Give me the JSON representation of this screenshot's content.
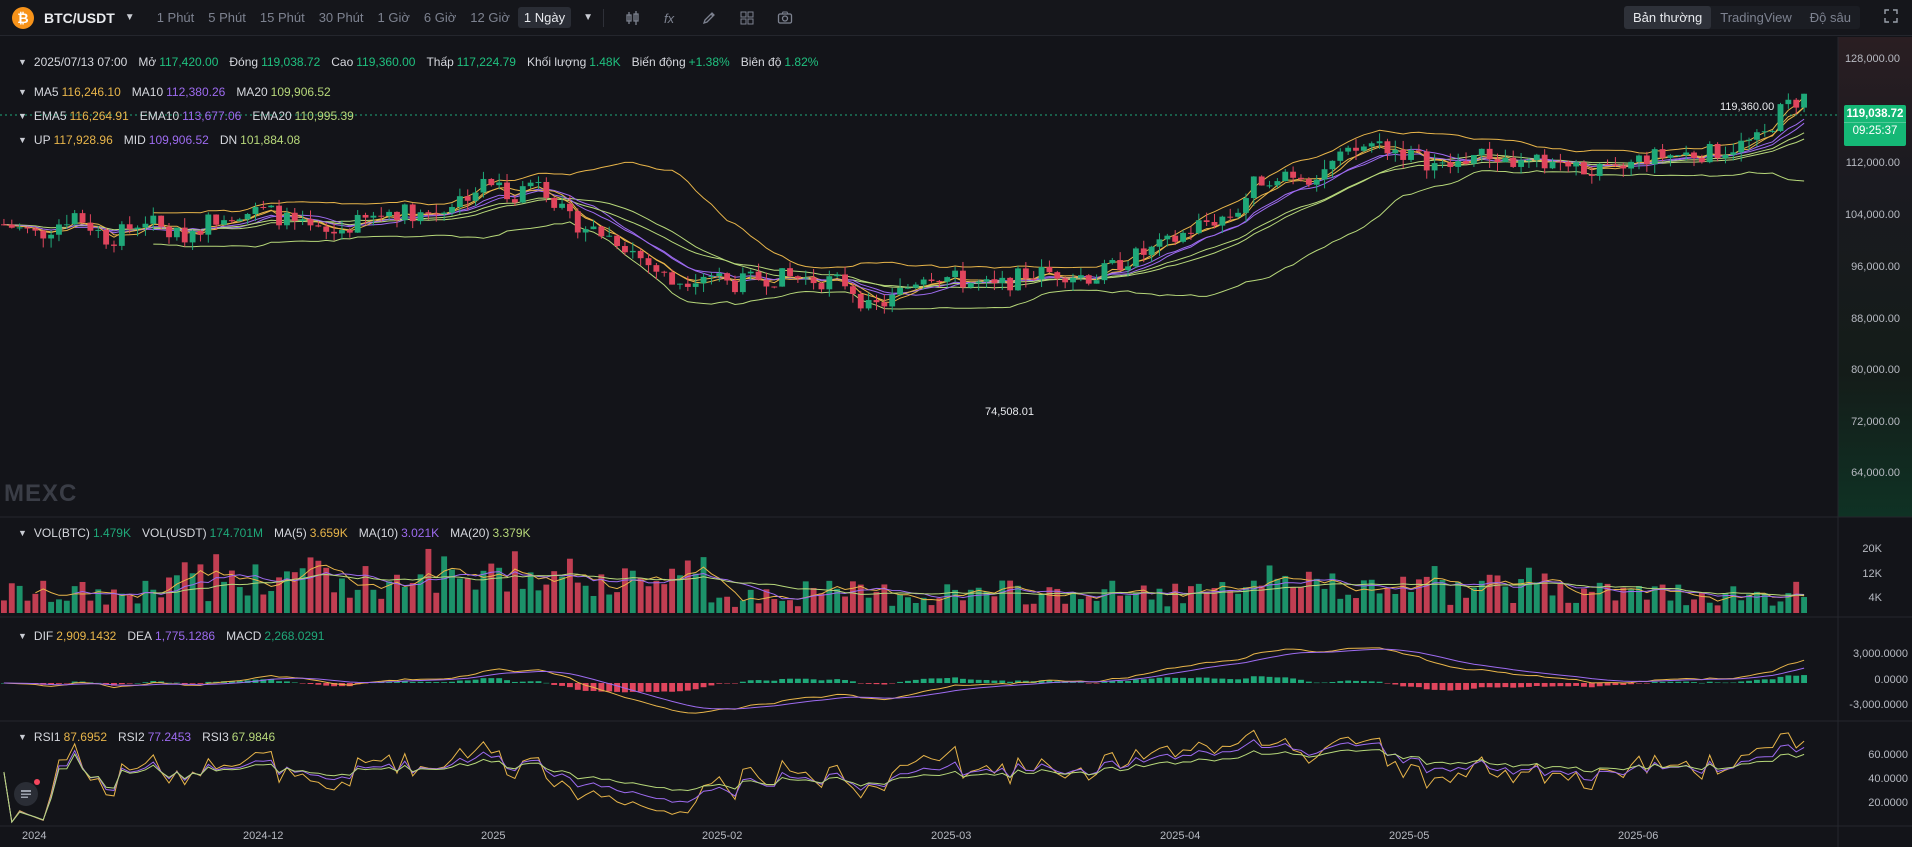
{
  "toolbar": {
    "logo_glyph": "₿",
    "symbol": "BTC/USDT",
    "intervals": [
      "1 Phút",
      "5 Phút",
      "15 Phút",
      "30 Phút",
      "1 Giờ",
      "6 Giờ",
      "12 Giờ",
      "1 Ngày"
    ],
    "active_interval": "1 Ngày",
    "tool_icons": [
      "candle-style-icon",
      "indicator-fx-icon",
      "draw-pen-icon",
      "layout-grid-icon",
      "camera-icon"
    ],
    "modes": [
      "Bản thường",
      "TradingView",
      "Độ sâu"
    ],
    "active_mode": "Bản thường"
  },
  "ohlc": {
    "date": "2025/07/13 07:00",
    "open_label": "Mở",
    "open": "117,420.00",
    "close_label": "Đóng",
    "close": "119,038.72",
    "high_label": "Cao",
    "high": "119,360.00",
    "low_label": "Thấp",
    "low": "117,224.79",
    "volume_label": "Khối lượng",
    "volume": "1.48K",
    "change_label": "Biến động",
    "change": "+1.38%",
    "amplitude_label": "Biên độ",
    "amplitude": "1.82%"
  },
  "ma": {
    "ma5_label": "MA5",
    "ma5": "116,246.10",
    "ma10_label": "MA10",
    "ma10": "112,380.26",
    "ma20_label": "MA20",
    "ma20": "109,906.52"
  },
  "ema": {
    "ema5_label": "EMA5",
    "ema5": "116,264.91",
    "ema10_label": "EMA10",
    "ema10": "113,677.06",
    "ema20_label": "EMA20",
    "ema20": "110,995.39"
  },
  "boll": {
    "up_label": "UP",
    "up": "117,928.96",
    "mid_label": "MID",
    "mid": "109,906.52",
    "dn_label": "DN",
    "dn": "101,884.08"
  },
  "vol": {
    "btc_label": "VOL(BTC)",
    "btc": "1.479K",
    "usdt_label": "VOL(USDT)",
    "usdt": "174.701M",
    "ma5_label": "MA(5)",
    "ma5": "3.659K",
    "ma10_label": "MA(10)",
    "ma10": "3.021K",
    "ma20_label": "MA(20)",
    "ma20": "3.379K"
  },
  "macd": {
    "dif_label": "DIF",
    "dif": "2,909.1432",
    "dea_label": "DEA",
    "dea": "1,775.1286",
    "macd_label": "MACD",
    "macd": "2,268.0291"
  },
  "rsi": {
    "rsi1_label": "RSI1",
    "rsi1": "87.6952",
    "rsi2_label": "RSI2",
    "rsi2": "77.2453",
    "rsi3_label": "RSI3",
    "rsi3": "67.9846"
  },
  "last_price": {
    "price": "119,038.72",
    "countdown": "09:25:37"
  },
  "high_marker": "119,360.00",
  "low_marker": "74,508.01",
  "watermark": "MEXC",
  "price_axis": [
    "128,000.00",
    "112,000.00",
    "104,000.00",
    "96,000.00",
    "88,000.00",
    "80,000.00",
    "72,000.00",
    "64,000.00"
  ],
  "volume_axis": [
    "20K",
    "12K",
    "4K"
  ],
  "macd_axis": [
    "3,000.0000",
    "0.0000",
    "-3,000.0000"
  ],
  "rsi_axis": [
    "60.0000",
    "40.0000",
    "20.0000"
  ],
  "time_axis": [
    "2024",
    "2024-12",
    "2025",
    "2025-02",
    "2025-03",
    "2025-04",
    "2025-05",
    "2025-06"
  ],
  "settings_icon": "settings-icon",
  "colors": {
    "bg": "#131419",
    "up": "#1fa879",
    "down": "#e0455d",
    "ma5": "#e8b54a",
    "ma10": "#9d6bf0",
    "ma20": "#b7d87a",
    "ema5": "#e8b54a",
    "ema10": "#9d6bf0",
    "ema20": "#b7d87a",
    "boll_up": "#e8b54a",
    "boll_mid": "#9d6bf0",
    "boll_dn": "#b7d87a",
    "price_tag": "#15b876",
    "positive": "#1fc07f"
  }
}
